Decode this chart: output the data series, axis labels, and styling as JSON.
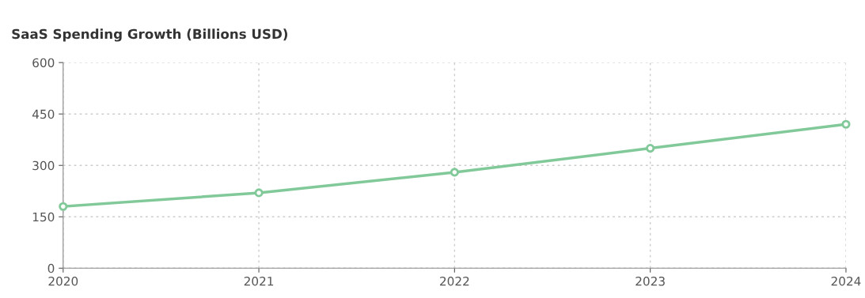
{
  "chart_data": {
    "type": "line",
    "title": "SaaS Spending Growth (Billions USD)",
    "x": [
      2020,
      2021,
      2022,
      2023,
      2024
    ],
    "series": [
      {
        "color": "#82c99a",
        "values": [
          180,
          220,
          280,
          350,
          420
        ]
      }
    ],
    "xlim": [
      2020,
      2024
    ],
    "xticks": [
      2020,
      2021,
      2022,
      2023,
      2024
    ],
    "ylim": [
      0,
      600
    ],
    "yticks": [
      0,
      150,
      300,
      450,
      600
    ],
    "grid": true,
    "marker": "circle",
    "line_style": "solid"
  }
}
